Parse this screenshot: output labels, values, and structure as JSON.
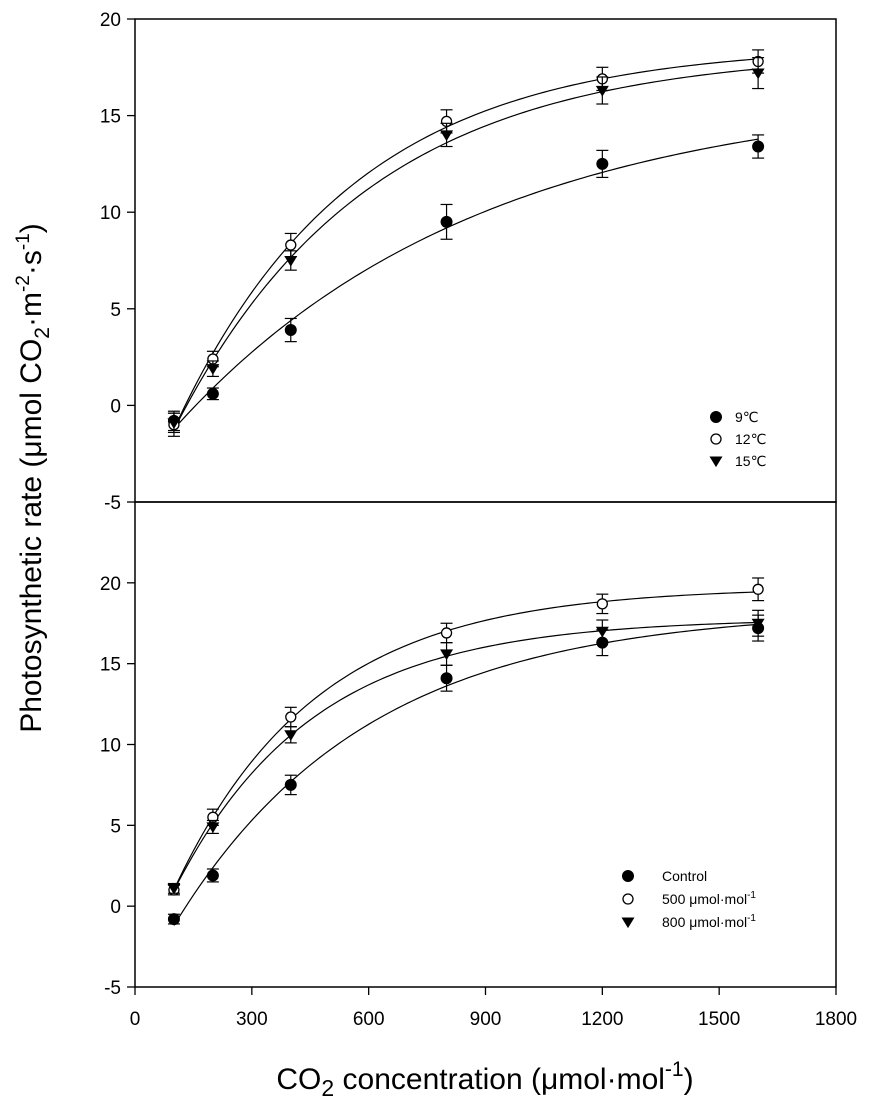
{
  "chart_data": [
    {
      "panel": "top",
      "type": "scatter",
      "ylim": [
        -5,
        20
      ],
      "yticks": [
        -5,
        0,
        5,
        10,
        15,
        20
      ],
      "xlim": [
        0,
        1800
      ],
      "fitted_curves": true,
      "legend_position": "bottom-right",
      "x": [
        100,
        200,
        400,
        800,
        1200,
        1600
      ],
      "series": [
        {
          "name": "9℃",
          "marker": "filled-circle",
          "values": [
            -0.8,
            0.6,
            3.9,
            9.5,
            12.5,
            13.4
          ],
          "errors": [
            0.5,
            0.3,
            0.6,
            0.9,
            0.7,
            0.6
          ]
        },
        {
          "name": "12℃",
          "marker": "open-circle",
          "values": [
            -1.0,
            2.4,
            8.3,
            14.7,
            16.9,
            17.8
          ],
          "errors": [
            0.6,
            0.4,
            0.6,
            0.6,
            0.6,
            0.6
          ]
        },
        {
          "name": "15℃",
          "marker": "filled-triangle-down",
          "values": [
            -0.9,
            1.9,
            7.5,
            14.0,
            16.3,
            17.2
          ],
          "errors": [
            0.5,
            0.4,
            0.5,
            0.6,
            0.7,
            0.8
          ]
        }
      ]
    },
    {
      "panel": "bottom",
      "type": "scatter",
      "ylim": [
        -5,
        25
      ],
      "yticks": [
        -5,
        0,
        5,
        10,
        15,
        20
      ],
      "xlim": [
        0,
        1800
      ],
      "xticks": [
        0,
        300,
        600,
        900,
        1200,
        1500,
        1800
      ],
      "fitted_curves": true,
      "legend_position": "bottom-right",
      "x": [
        100,
        200,
        400,
        800,
        1200,
        1600
      ],
      "series": [
        {
          "name": "Control",
          "marker": "filled-circle",
          "values": [
            -0.8,
            1.9,
            7.5,
            14.1,
            16.3,
            17.2
          ],
          "errors": [
            0.3,
            0.4,
            0.6,
            0.8,
            0.8,
            0.8
          ]
        },
        {
          "name": "500 μmol·mol",
          "name_sup": "-1",
          "marker": "open-circle",
          "values": [
            1.0,
            5.5,
            11.7,
            16.9,
            18.7,
            19.6
          ],
          "errors": [
            0.3,
            0.5,
            0.6,
            0.6,
            0.6,
            0.7
          ]
        },
        {
          "name": "800 μmol·mol",
          "name_sup": "-1",
          "marker": "filled-triangle-down",
          "values": [
            1.1,
            4.9,
            10.6,
            15.6,
            17.0,
            17.5
          ],
          "errors": [
            0.3,
            0.4,
            0.5,
            0.7,
            0.7,
            0.8
          ]
        }
      ]
    }
  ],
  "labels": {
    "ylabel_main": "Photosynthetic rate (μmol CO",
    "ylabel_sub": "2",
    "ylabel_mid": "·m",
    "ylabel_sup1": "-2",
    "ylabel_mid2": "·s",
    "ylabel_sup2": "-1",
    "ylabel_end": ")",
    "xlabel_main": "CO",
    "xlabel_sub": "2",
    "xlabel_mid": " concentration (μmol·mol",
    "xlabel_sup": "-1",
    "xlabel_end": ")"
  }
}
